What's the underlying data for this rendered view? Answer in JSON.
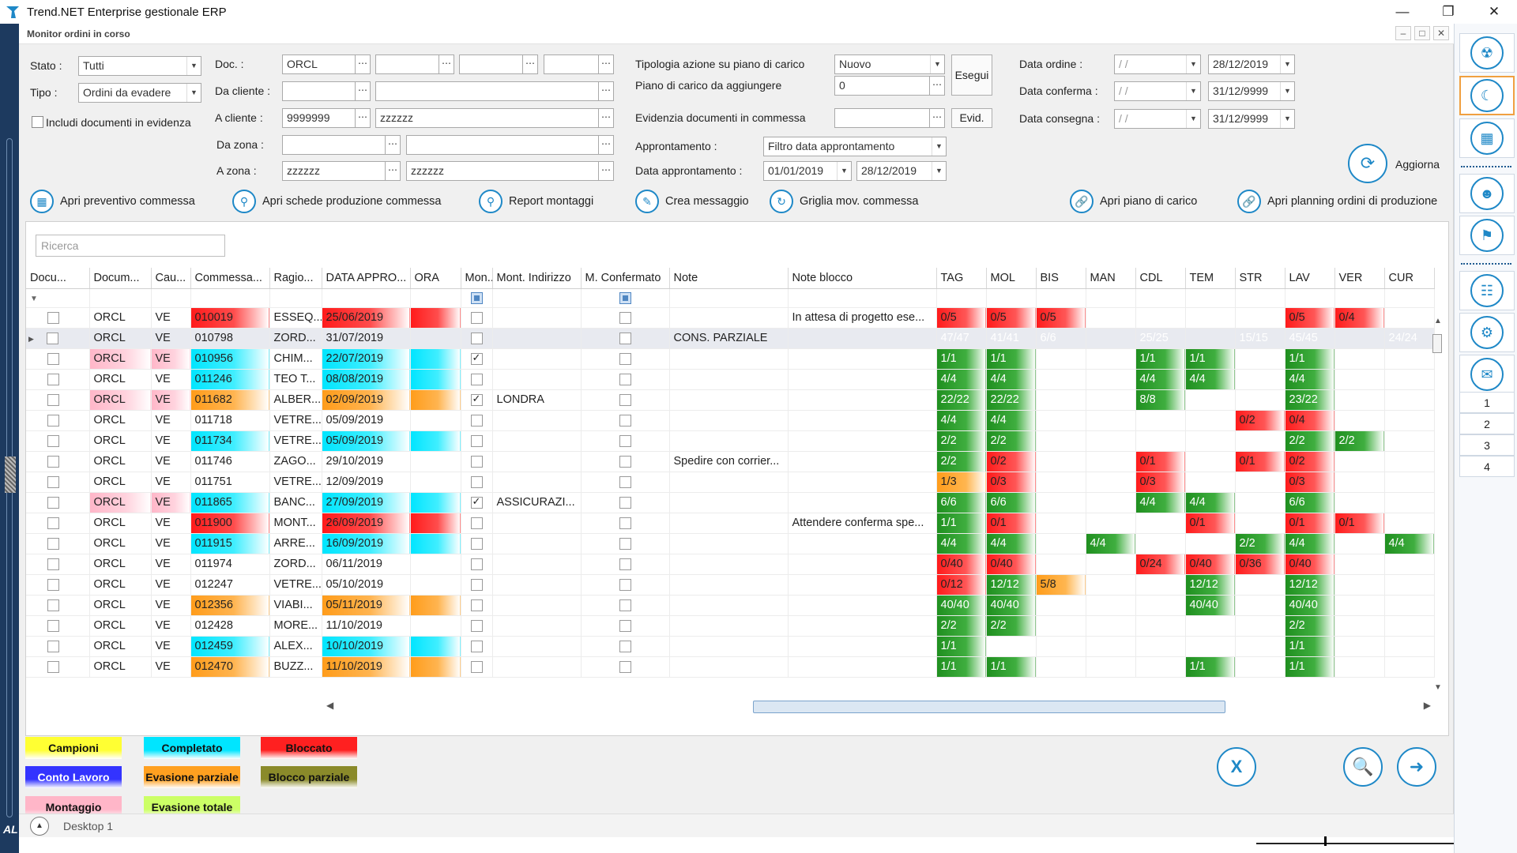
{
  "window": {
    "title": "Trend.NET Enterprise gestionale ERP"
  },
  "left_strip_text": "AL",
  "inner": {
    "title": "Monitor ordini in corso"
  },
  "filters": {
    "stato_label": "Stato :",
    "stato_value": "Tutti",
    "tipo_label": "Tipo :",
    "tipo_value": "Ordini da evadere",
    "includi_label": "Includi documenti in evidenza",
    "doc_label": "Doc. :",
    "doc_value": "ORCL",
    "da_cliente_label": "Da cliente :",
    "a_cliente_label": "A cliente :",
    "a_cliente_value": "9999999",
    "a_cliente_desc": "zzzzzz",
    "da_zona_label": "Da zona :",
    "a_zona_label": "A zona :",
    "a_zona_value": "zzzzzz",
    "a_zona_desc": "zzzzzz",
    "tipologia_label": "Tipologia azione su piano di carico",
    "tipologia_value": "Nuovo",
    "piano_label": "Piano di carico da aggiungere",
    "piano_value": "0",
    "esegui_label": "Esegui",
    "evidenzia_label": "Evidenzia documenti in commessa",
    "evid_label": "Evid.",
    "approntamento_label": "Approntamento :",
    "approntamento_value": "Filtro data approntamento",
    "data_appr_label": "Data approntamento :",
    "data_appr_from": "01/01/2019",
    "data_appr_to": "28/12/2019",
    "data_ordine_label": "Data ordine :",
    "data_ordine_from": " / /",
    "data_ordine_to": "28/12/2019",
    "data_conferma_label": "Data conferma :",
    "data_conferma_from": " / /",
    "data_conferma_to": "31/12/9999",
    "data_consegna_label": "Data consegna :",
    "data_consegna_from": " / /",
    "data_consegna_to": "31/12/9999",
    "aggiorna_label": "Aggiorna"
  },
  "actions": [
    {
      "label": "Apri preventivo commessa",
      "icon": "calculator-icon"
    },
    {
      "label": "Apri schede produzione commessa",
      "icon": "search-doc-icon"
    },
    {
      "label": "Report montaggi",
      "icon": "search-doc-icon"
    },
    {
      "label": "Crea messaggio",
      "icon": "message-icon"
    },
    {
      "label": "Griglia mov. commessa",
      "icon": "refresh-icon"
    },
    {
      "label": "Apri piano di carico",
      "icon": "link-icon"
    },
    {
      "label": "Apri planning ordini di produzione",
      "icon": "link-icon"
    }
  ],
  "search": {
    "placeholder": "Ricerca"
  },
  "columns": [
    "Docu...",
    "Docum...",
    "Cau...",
    "Commessa...",
    "Ragio...",
    "DATA APPRO...",
    "ORA",
    "Mon...",
    "Mont. Indirizzo",
    "M. Confermato",
    "Note",
    "Note blocco",
    "TAG",
    "MOL",
    "BIS",
    "MAN",
    "CDL",
    "TEM",
    "STR",
    "LAV",
    "VER",
    "CUR"
  ],
  "rows": [
    {
      "doc": "ORCL",
      "cau": "VE",
      "comm": "010019",
      "rag": "ESSEQ...",
      "data": "25/06/2019",
      "mon": false,
      "ind": "",
      "note": "",
      "nb": "In attesa di progetto ese...",
      "color": "red",
      "dcolor": "red",
      "ocolor": "red",
      "pink": false,
      "s": [
        [
          "0/5",
          "r"
        ],
        [
          "0/5",
          "r"
        ],
        [
          "0/5",
          "r"
        ],
        [
          "",
          ""
        ],
        [
          "",
          ""
        ],
        [
          "",
          ""
        ],
        [
          "",
          ""
        ],
        [
          "0/5",
          "r"
        ],
        [
          "0/4",
          "r"
        ],
        [
          "",
          ""
        ]
      ]
    },
    {
      "doc": "ORCL",
      "cau": "VE",
      "comm": "010798",
      "rag": "ZORD...",
      "data": "31/07/2019",
      "mon": false,
      "ind": "",
      "note": "CONS. PARZIALE",
      "nb": "",
      "color": "orange",
      "dcolor": "orange",
      "ocolor": "orange",
      "pink": false,
      "sel": true,
      "s": [
        [
          "47/47",
          "g"
        ],
        [
          "41/41",
          "g"
        ],
        [
          "6/6",
          "g"
        ],
        [
          "",
          ""
        ],
        [
          "25/25",
          "g"
        ],
        [
          "",
          ""
        ],
        [
          "15/15",
          "g"
        ],
        [
          "45/45",
          "g"
        ],
        [
          "",
          ""
        ],
        [
          "24/24",
          "g"
        ]
      ]
    },
    {
      "doc": "ORCL",
      "cau": "VE",
      "comm": "010956",
      "rag": "CHIM...",
      "data": "22/07/2019",
      "mon": true,
      "ind": "",
      "note": "",
      "nb": "",
      "color": "cyan",
      "dcolor": "cyan",
      "ocolor": "cyan",
      "pink": true,
      "s": [
        [
          "1/1",
          "g"
        ],
        [
          "1/1",
          "g"
        ],
        [
          "",
          ""
        ],
        [
          "",
          ""
        ],
        [
          "1/1",
          "g"
        ],
        [
          "1/1",
          "g"
        ],
        [
          "",
          ""
        ],
        [
          "1/1",
          "g"
        ],
        [
          "",
          ""
        ],
        [
          "",
          ""
        ]
      ]
    },
    {
      "doc": "ORCL",
      "cau": "VE",
      "comm": "011246",
      "rag": "TEO T...",
      "data": "08/08/2019",
      "mon": false,
      "ind": "",
      "note": "",
      "nb": "",
      "color": "cyan",
      "dcolor": "cyan",
      "ocolor": "cyan",
      "pink": false,
      "s": [
        [
          "4/4",
          "g"
        ],
        [
          "4/4",
          "g"
        ],
        [
          "",
          ""
        ],
        [
          "",
          ""
        ],
        [
          "4/4",
          "g"
        ],
        [
          "4/4",
          "g"
        ],
        [
          "",
          ""
        ],
        [
          "4/4",
          "g"
        ],
        [
          "",
          ""
        ],
        [
          "",
          ""
        ]
      ]
    },
    {
      "doc": "ORCL",
      "cau": "VE",
      "comm": "011682",
      "rag": "ALBER...",
      "data": "02/09/2019",
      "mon": true,
      "ind": "LONDRA",
      "note": "",
      "nb": "",
      "color": "orange",
      "dcolor": "orange",
      "ocolor": "orange",
      "pink": true,
      "s": [
        [
          "22/22",
          "g"
        ],
        [
          "22/22",
          "g"
        ],
        [
          "",
          ""
        ],
        [
          "",
          ""
        ],
        [
          "8/8",
          "g"
        ],
        [
          "",
          ""
        ],
        [
          "",
          ""
        ],
        [
          "23/22",
          "g"
        ],
        [
          "",
          ""
        ],
        [
          "",
          ""
        ]
      ]
    },
    {
      "doc": "ORCL",
      "cau": "VE",
      "comm": "011718",
      "rag": "VETRE...",
      "data": "05/09/2019",
      "mon": false,
      "ind": "",
      "note": "",
      "nb": "",
      "color": "",
      "dcolor": "",
      "ocolor": "",
      "pink": false,
      "s": [
        [
          "4/4",
          "g"
        ],
        [
          "4/4",
          "g"
        ],
        [
          "",
          ""
        ],
        [
          "",
          ""
        ],
        [
          "",
          ""
        ],
        [
          "",
          ""
        ],
        [
          "0/2",
          "r"
        ],
        [
          "0/4",
          "r"
        ],
        [
          "",
          ""
        ],
        [
          "",
          ""
        ]
      ]
    },
    {
      "doc": "ORCL",
      "cau": "VE",
      "comm": "011734",
      "rag": "VETRE...",
      "data": "05/09/2019",
      "mon": false,
      "ind": "",
      "note": "",
      "nb": "",
      "color": "cyan",
      "dcolor": "cyan",
      "ocolor": "cyan",
      "pink": false,
      "s": [
        [
          "2/2",
          "g"
        ],
        [
          "2/2",
          "g"
        ],
        [
          "",
          ""
        ],
        [
          "",
          ""
        ],
        [
          "",
          ""
        ],
        [
          "",
          ""
        ],
        [
          "",
          ""
        ],
        [
          "2/2",
          "g"
        ],
        [
          "2/2",
          "g"
        ],
        [
          "",
          ""
        ]
      ]
    },
    {
      "doc": "ORCL",
      "cau": "VE",
      "comm": "011746",
      "rag": "ZAGO...",
      "data": "29/10/2019",
      "mon": false,
      "ind": "",
      "note": "Spedire con corrier...",
      "nb": "",
      "color": "",
      "dcolor": "",
      "ocolor": "",
      "pink": false,
      "s": [
        [
          "2/2",
          "g"
        ],
        [
          "0/2",
          "r"
        ],
        [
          "",
          ""
        ],
        [
          "",
          ""
        ],
        [
          "0/1",
          "r"
        ],
        [
          "",
          ""
        ],
        [
          "0/1",
          "r"
        ],
        [
          "0/2",
          "r"
        ],
        [
          "",
          ""
        ],
        [
          "",
          ""
        ]
      ]
    },
    {
      "doc": "ORCL",
      "cau": "VE",
      "comm": "011751",
      "rag": "VETRE...",
      "data": "12/09/2019",
      "mon": false,
      "ind": "",
      "note": "",
      "nb": "",
      "color": "",
      "dcolor": "",
      "ocolor": "",
      "pink": false,
      "s": [
        [
          "1/3",
          "o"
        ],
        [
          "0/3",
          "r"
        ],
        [
          "",
          ""
        ],
        [
          "",
          ""
        ],
        [
          "0/3",
          "r"
        ],
        [
          "",
          ""
        ],
        [
          "",
          ""
        ],
        [
          "0/3",
          "r"
        ],
        [
          "",
          ""
        ],
        [
          "",
          ""
        ]
      ]
    },
    {
      "doc": "ORCL",
      "cau": "VE",
      "comm": "011865",
      "rag": "BANC...",
      "data": "27/09/2019",
      "mon": true,
      "ind": "ASSICURAZI...",
      "note": "",
      "nb": "",
      "color": "cyan",
      "dcolor": "cyan",
      "ocolor": "cyan",
      "pink": true,
      "s": [
        [
          "6/6",
          "g"
        ],
        [
          "6/6",
          "g"
        ],
        [
          "",
          ""
        ],
        [
          "",
          ""
        ],
        [
          "4/4",
          "g"
        ],
        [
          "4/4",
          "g"
        ],
        [
          "",
          ""
        ],
        [
          "6/6",
          "g"
        ],
        [
          "",
          ""
        ],
        [
          "",
          ""
        ]
      ]
    },
    {
      "doc": "ORCL",
      "cau": "VE",
      "comm": "011900",
      "rag": "MONT...",
      "data": "26/09/2019",
      "mon": false,
      "ind": "",
      "note": "",
      "nb": "Attendere conferma spe...",
      "color": "red",
      "dcolor": "red",
      "ocolor": "red",
      "pink": false,
      "s": [
        [
          "1/1",
          "g"
        ],
        [
          "0/1",
          "r"
        ],
        [
          "",
          ""
        ],
        [
          "",
          ""
        ],
        [
          "",
          ""
        ],
        [
          "0/1",
          "r"
        ],
        [
          "",
          ""
        ],
        [
          "0/1",
          "r"
        ],
        [
          "0/1",
          "r"
        ],
        [
          "",
          ""
        ]
      ]
    },
    {
      "doc": "ORCL",
      "cau": "VE",
      "comm": "011915",
      "rag": "ARRE...",
      "data": "16/09/2019",
      "mon": false,
      "ind": "",
      "note": "",
      "nb": "",
      "color": "cyan",
      "dcolor": "cyan",
      "ocolor": "cyan",
      "pink": false,
      "s": [
        [
          "4/4",
          "g"
        ],
        [
          "4/4",
          "g"
        ],
        [
          "",
          ""
        ],
        [
          "4/4",
          "g"
        ],
        [
          "",
          ""
        ],
        [
          "",
          ""
        ],
        [
          "2/2",
          "g"
        ],
        [
          "4/4",
          "g"
        ],
        [
          "",
          ""
        ],
        [
          "4/4",
          "g"
        ]
      ]
    },
    {
      "doc": "ORCL",
      "cau": "VE",
      "comm": "011974",
      "rag": "ZORD...",
      "data": "06/11/2019",
      "mon": false,
      "ind": "",
      "note": "",
      "nb": "",
      "color": "",
      "dcolor": "",
      "ocolor": "",
      "pink": false,
      "s": [
        [
          "0/40",
          "r"
        ],
        [
          "0/40",
          "r"
        ],
        [
          "",
          ""
        ],
        [
          "",
          ""
        ],
        [
          "0/24",
          "r"
        ],
        [
          "0/40",
          "r"
        ],
        [
          "0/36",
          "r"
        ],
        [
          "0/40",
          "r"
        ],
        [
          "",
          ""
        ],
        [
          "",
          ""
        ]
      ]
    },
    {
      "doc": "ORCL",
      "cau": "VE",
      "comm": "012247",
      "rag": "VETRE...",
      "data": "05/10/2019",
      "mon": false,
      "ind": "",
      "note": "",
      "nb": "",
      "color": "",
      "dcolor": "",
      "ocolor": "",
      "pink": false,
      "s": [
        [
          "0/12",
          "r"
        ],
        [
          "12/12",
          "g"
        ],
        [
          "5/8",
          "o"
        ],
        [
          "",
          ""
        ],
        [
          "",
          ""
        ],
        [
          "12/12",
          "g"
        ],
        [
          "",
          ""
        ],
        [
          "12/12",
          "g"
        ],
        [
          "",
          ""
        ],
        [
          "",
          ""
        ]
      ]
    },
    {
      "doc": "ORCL",
      "cau": "VE",
      "comm": "012356",
      "rag": "VIABI...",
      "data": "05/11/2019",
      "mon": false,
      "ind": "",
      "note": "",
      "nb": "",
      "color": "orange",
      "dcolor": "orange",
      "ocolor": "orange",
      "pink": false,
      "s": [
        [
          "40/40",
          "g"
        ],
        [
          "40/40",
          "g"
        ],
        [
          "",
          ""
        ],
        [
          "",
          ""
        ],
        [
          "",
          ""
        ],
        [
          "40/40",
          "g"
        ],
        [
          "",
          ""
        ],
        [
          "40/40",
          "g"
        ],
        [
          "",
          ""
        ],
        [
          "",
          ""
        ]
      ]
    },
    {
      "doc": "ORCL",
      "cau": "VE",
      "comm": "012428",
      "rag": "MORE...",
      "data": "11/10/2019",
      "mon": false,
      "ind": "",
      "note": "",
      "nb": "",
      "color": "",
      "dcolor": "",
      "ocolor": "",
      "pink": false,
      "s": [
        [
          "2/2",
          "g"
        ],
        [
          "2/2",
          "g"
        ],
        [
          "",
          ""
        ],
        [
          "",
          ""
        ],
        [
          "",
          ""
        ],
        [
          "",
          ""
        ],
        [
          "",
          ""
        ],
        [
          "2/2",
          "g"
        ],
        [
          "",
          ""
        ],
        [
          "",
          ""
        ]
      ]
    },
    {
      "doc": "ORCL",
      "cau": "VE",
      "comm": "012459",
      "rag": "ALEX...",
      "data": "10/10/2019",
      "mon": false,
      "ind": "",
      "note": "",
      "nb": "",
      "color": "cyan",
      "dcolor": "cyan",
      "ocolor": "cyan",
      "pink": false,
      "s": [
        [
          "1/1",
          "g"
        ],
        [
          "",
          ""
        ],
        [
          "",
          ""
        ],
        [
          "",
          ""
        ],
        [
          "",
          ""
        ],
        [
          "",
          ""
        ],
        [
          "",
          ""
        ],
        [
          "1/1",
          "g"
        ],
        [
          "",
          ""
        ],
        [
          "",
          ""
        ]
      ]
    },
    {
      "doc": "ORCL",
      "cau": "VE",
      "comm": "012470",
      "rag": "BUZZ...",
      "data": "11/10/2019",
      "mon": false,
      "ind": "",
      "note": "",
      "nb": "",
      "color": "orange",
      "dcolor": "orange",
      "ocolor": "orange",
      "pink": false,
      "s": [
        [
          "1/1",
          "g"
        ],
        [
          "1/1",
          "g"
        ],
        [
          "",
          ""
        ],
        [
          "",
          ""
        ],
        [
          "",
          ""
        ],
        [
          "1/1",
          "g"
        ],
        [
          "",
          ""
        ],
        [
          "1/1",
          "g"
        ],
        [
          "",
          ""
        ],
        [
          "",
          ""
        ]
      ]
    }
  ],
  "legend": [
    {
      "label": "Campioni",
      "color": "#ffff33"
    },
    {
      "label": "Completato",
      "color": "#00e5ff"
    },
    {
      "label": "Bloccato",
      "color": "#ff2020"
    },
    {
      "label": "Conto Lavoro",
      "color": "#3333ff"
    },
    {
      "label": "Evasione parziale",
      "color": "#ffa020"
    },
    {
      "label": "Blocco parziale",
      "color": "#8a8a2a"
    },
    {
      "label": "Montaggio",
      "color": "#ffb6c8"
    },
    {
      "label": "Evasione totale",
      "color": "#ccff66"
    }
  ],
  "status": {
    "desktop": "Desktop 1"
  },
  "right_panel": {
    "pages": [
      "1",
      "2",
      "3",
      "4"
    ]
  }
}
